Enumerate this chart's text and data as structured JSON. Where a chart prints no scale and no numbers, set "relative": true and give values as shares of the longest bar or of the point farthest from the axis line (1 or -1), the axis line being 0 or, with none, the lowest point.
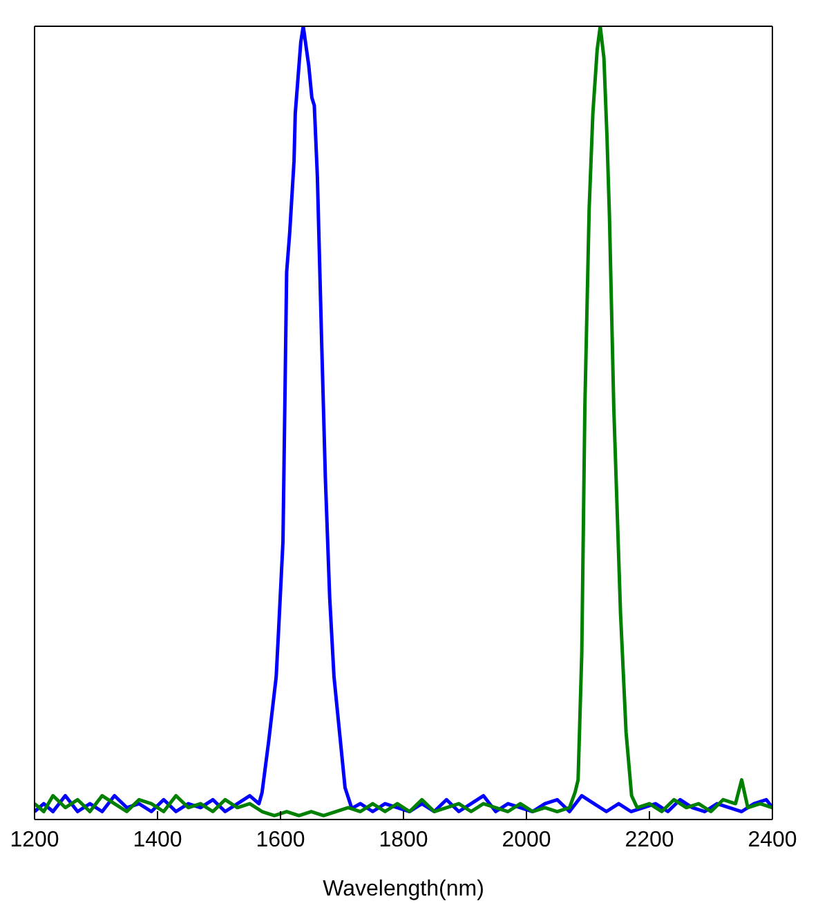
{
  "chart_data": {
    "type": "line",
    "relative": true,
    "xlabel": "Wavelength(nm)",
    "xlim": [
      1200,
      2400
    ],
    "xticks": [
      1200,
      1400,
      1600,
      1800,
      2000,
      2200,
      2400
    ],
    "marker": "none",
    "line_style": "solid",
    "series": [
      {
        "color": "#0000ff",
        "x": [
          1200,
          1215,
          1230,
          1250,
          1270,
          1290,
          1310,
          1330,
          1350,
          1370,
          1390,
          1410,
          1430,
          1450,
          1470,
          1490,
          1510,
          1530,
          1550,
          1565,
          1570,
          1581,
          1593,
          1597,
          1604,
          1610,
          1615,
          1622,
          1624,
          1633,
          1637,
          1646,
          1651,
          1655,
          1660,
          1667,
          1673,
          1680,
          1687,
          1696,
          1705,
          1716,
          1730,
          1750,
          1770,
          1790,
          1810,
          1830,
          1850,
          1870,
          1890,
          1910,
          1930,
          1950,
          1970,
          1990,
          2010,
          2030,
          2050,
          2070,
          2090,
          2110,
          2130,
          2150,
          2170,
          2190,
          2210,
          2230,
          2250,
          2270,
          2290,
          2310,
          2330,
          2350,
          2370,
          2390,
          2400
        ],
        "values": [
          0.01,
          0.02,
          0.01,
          0.03,
          0.01,
          0.02,
          0.01,
          0.03,
          0.015,
          0.02,
          0.01,
          0.025,
          0.01,
          0.02,
          0.015,
          0.025,
          0.01,
          0.02,
          0.03,
          0.02,
          0.034,
          0.1,
          0.18,
          0.24,
          0.35,
          0.69,
          0.74,
          0.83,
          0.89,
          0.98,
          1,
          0.95,
          0.91,
          0.9,
          0.81,
          0.6,
          0.43,
          0.28,
          0.18,
          0.11,
          0.04,
          0.014,
          0.02,
          0.01,
          0.02,
          0.015,
          0.01,
          0.02,
          0.01,
          0.025,
          0.01,
          0.02,
          0.03,
          0.01,
          0.02,
          0.015,
          0.01,
          0.02,
          0.025,
          0.01,
          0.03,
          0.02,
          0.01,
          0.02,
          0.01,
          0.015,
          0.02,
          0.01,
          0.025,
          0.015,
          0.01,
          0.02,
          0.015,
          0.01,
          0.02,
          0.025,
          0.015
        ]
      },
      {
        "color": "#008000",
        "x": [
          1200,
          1215,
          1230,
          1250,
          1270,
          1290,
          1310,
          1330,
          1350,
          1370,
          1390,
          1410,
          1430,
          1450,
          1470,
          1490,
          1510,
          1530,
          1550,
          1570,
          1590,
          1610,
          1630,
          1650,
          1670,
          1690,
          1710,
          1730,
          1750,
          1770,
          1790,
          1810,
          1830,
          1850,
          1870,
          1890,
          1910,
          1930,
          1950,
          1970,
          1990,
          2010,
          2030,
          2050,
          2070,
          2079,
          2084,
          2090,
          2095,
          2102,
          2108,
          2115,
          2120,
          2126,
          2131,
          2135,
          2142,
          2153,
          2162,
          2171,
          2180,
          2200,
          2220,
          2240,
          2260,
          2280,
          2300,
          2320,
          2340,
          2350,
          2360,
          2380,
          2400
        ],
        "values": [
          0.02,
          0.01,
          0.03,
          0.015,
          0.025,
          0.01,
          0.03,
          0.02,
          0.01,
          0.025,
          0.02,
          0.01,
          0.03,
          0.015,
          0.02,
          0.01,
          0.025,
          0.015,
          0.02,
          0.01,
          0.005,
          0.01,
          0.005,
          0.01,
          0.005,
          0.01,
          0.015,
          0.01,
          0.02,
          0.01,
          0.02,
          0.01,
          0.025,
          0.01,
          0.015,
          0.02,
          0.01,
          0.02,
          0.015,
          0.01,
          0.02,
          0.01,
          0.015,
          0.01,
          0.015,
          0.034,
          0.05,
          0.21,
          0.52,
          0.77,
          0.89,
          0.97,
          1,
          0.96,
          0.86,
          0.76,
          0.52,
          0.26,
          0.11,
          0.03,
          0.015,
          0.02,
          0.01,
          0.025,
          0.015,
          0.02,
          0.01,
          0.025,
          0.02,
          0.05,
          0.015,
          0.02,
          0.015
        ]
      }
    ]
  }
}
